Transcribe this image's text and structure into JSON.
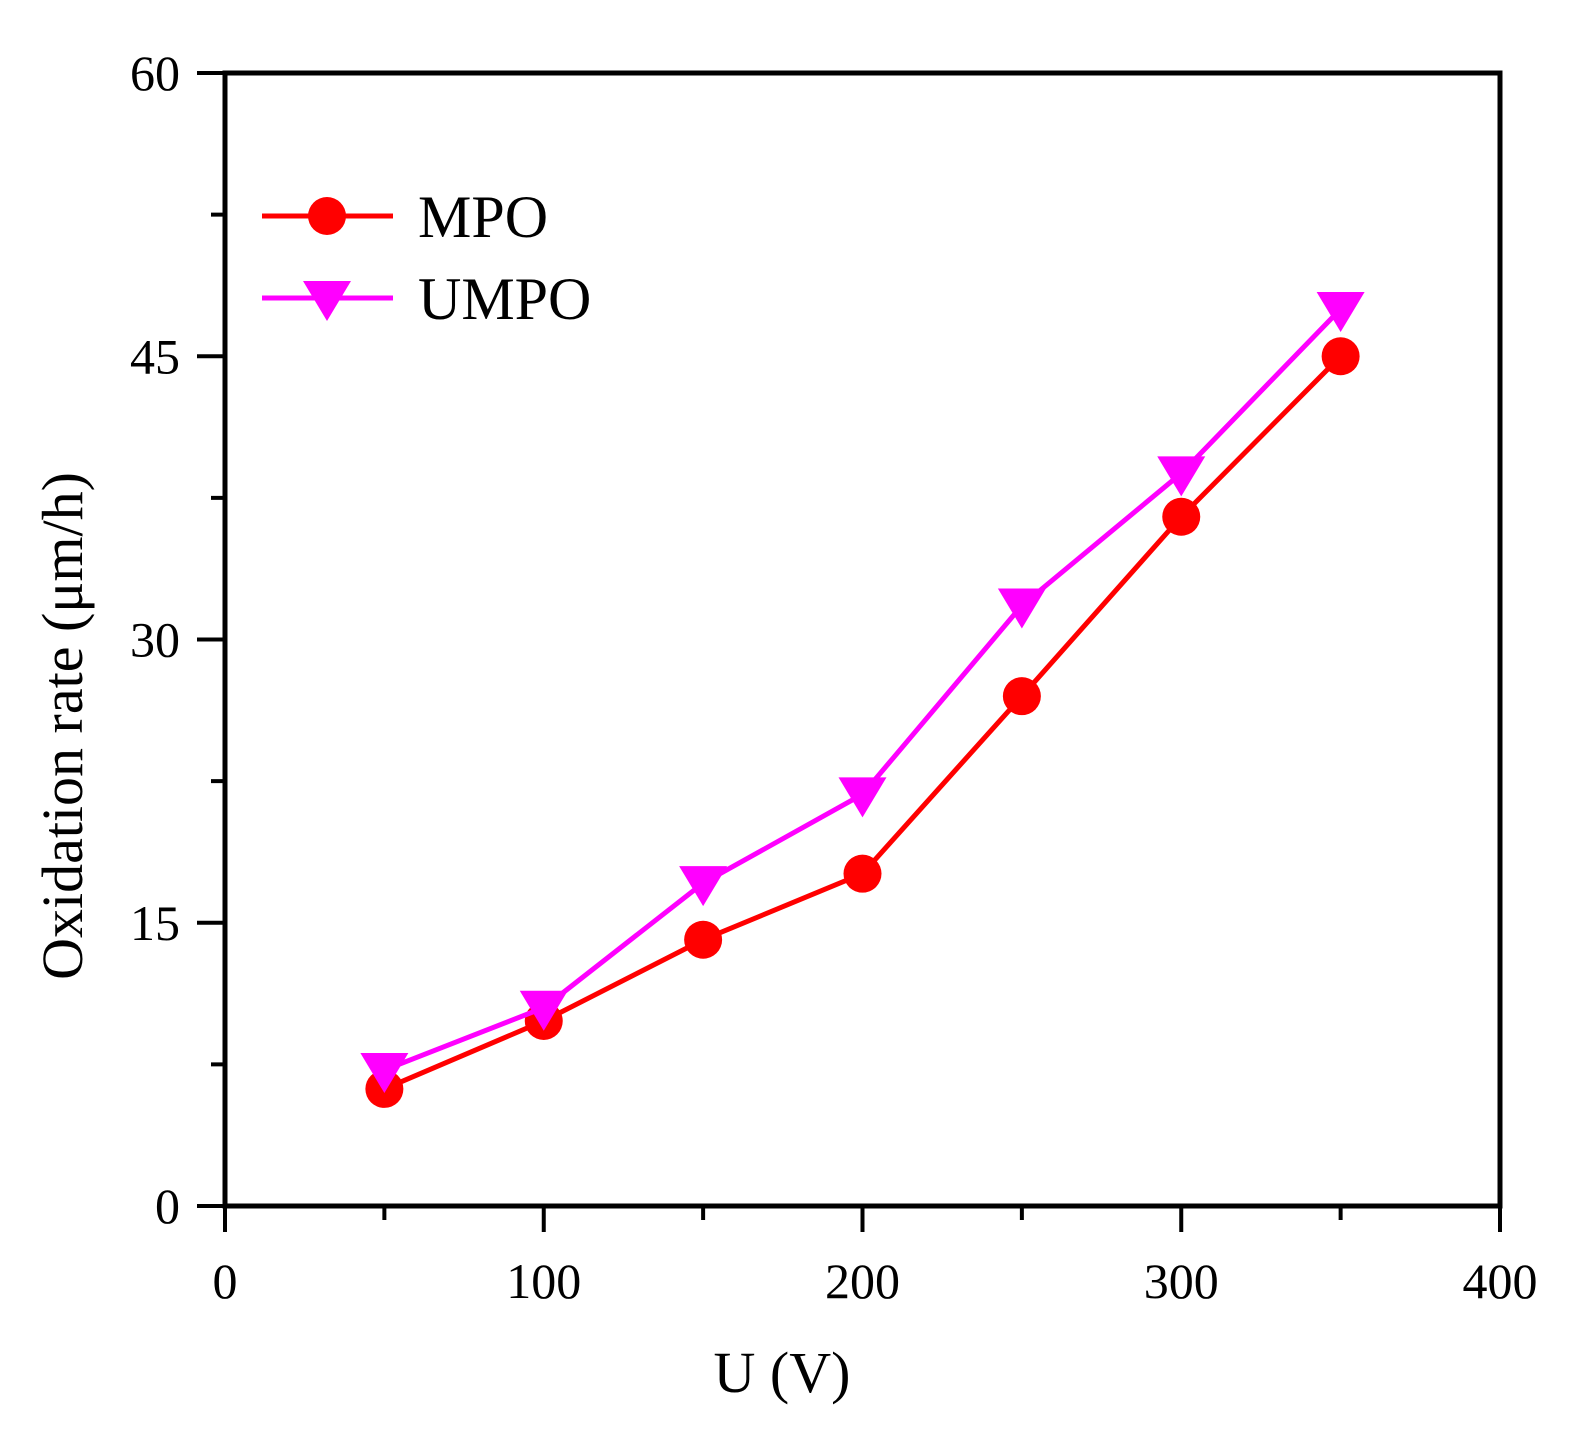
{
  "chart_data": {
    "type": "line",
    "xlabel": "U (V)",
    "ylabel": "Oxidation rate (μm/h)",
    "xlim": [
      0,
      400
    ],
    "ylim": [
      0,
      60
    ],
    "xticks": [
      0,
      100,
      200,
      300,
      400
    ],
    "yticks": [
      0,
      15,
      30,
      45,
      60
    ],
    "grid": false,
    "legend_position": "top-left",
    "series": [
      {
        "name": "MPO",
        "color": "#ff0000",
        "marker": "circle",
        "x": [
          50,
          100,
          150,
          200,
          250,
          300,
          350
        ],
        "values": [
          6.2,
          9.8,
          14.1,
          17.6,
          27.0,
          36.5,
          45.0
        ]
      },
      {
        "name": "UMPO",
        "color": "#ff00ff",
        "marker": "triangle-down",
        "x": [
          50,
          100,
          150,
          200,
          250,
          300,
          350
        ],
        "values": [
          7.2,
          10.5,
          17.1,
          21.8,
          31.8,
          38.8,
          47.5
        ]
      }
    ]
  }
}
